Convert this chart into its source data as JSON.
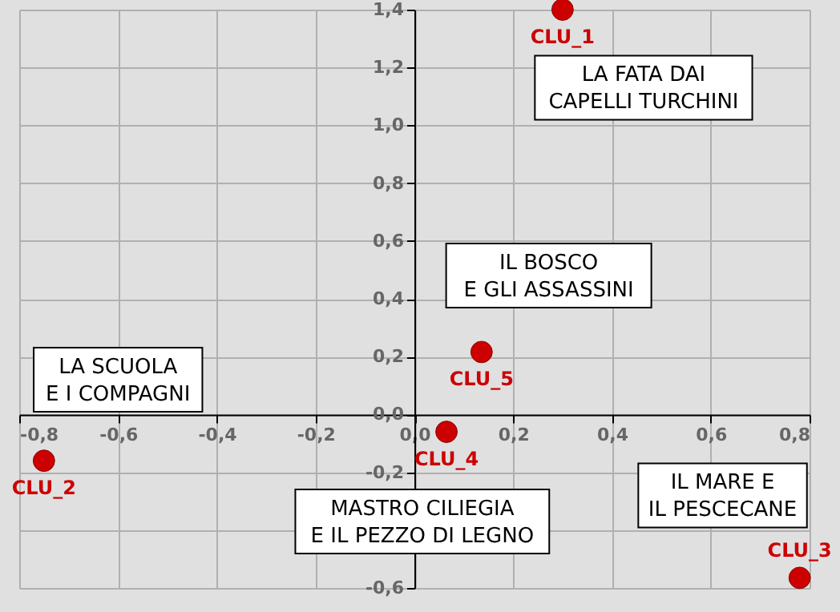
{
  "chart_data": {
    "type": "scatter",
    "x": [
      0.3,
      -0.75,
      0.78,
      0.065,
      0.136
    ],
    "series": [
      {
        "color": "#cc0000",
        "values": [
          1.4,
          -0.16,
          -0.565,
          -0.06,
          0.216
        ]
      }
    ],
    "marker": "circle",
    "xlim": [
      -0.8,
      0.8
    ],
    "ylim": [
      -0.6,
      1.4
    ],
    "xticks": [
      {
        "value": -0.8,
        "label": "-0,8"
      },
      {
        "value": -0.6,
        "label": "-0,6"
      },
      {
        "value": -0.4,
        "label": "-0,4"
      },
      {
        "value": -0.2,
        "label": "-0,2"
      },
      {
        "value": 0,
        "label": "0,0"
      },
      {
        "value": 0.2,
        "label": "0,2"
      },
      {
        "value": 0.4,
        "label": "0,4"
      },
      {
        "value": 0.6,
        "label": "0,6"
      },
      {
        "value": 0.8,
        "label": "0,8"
      }
    ],
    "yticks": [
      {
        "value": -0.6,
        "label": "-0,6"
      },
      {
        "value": -0.4,
        "label": null
      },
      {
        "value": -0.2,
        "label": "-0,2"
      },
      {
        "value": 0,
        "label": "0,0"
      },
      {
        "value": 0.2,
        "label": "0,2"
      },
      {
        "value": 0.4,
        "label": "0,4"
      },
      {
        "value": 0.6,
        "label": "0,6"
      },
      {
        "value": 0.8,
        "label": "0,8"
      },
      {
        "value": 1.0,
        "label": "1,0"
      },
      {
        "value": 1.2,
        "label": "1,2"
      },
      {
        "value": 1.4,
        "label": "1,4"
      }
    ],
    "grid": true,
    "annotations": [
      {
        "text": "CLU_1",
        "x": 0.3,
        "y": 1.4
      },
      {
        "text": "CLU_2",
        "x": -0.75,
        "y": -0.16
      },
      {
        "text": "CLU_3",
        "x": 0.78,
        "y": -0.565
      },
      {
        "text": "CLU_4",
        "x": 0.065,
        "y": -0.06
      },
      {
        "text": "CLU_5",
        "x": 0.136,
        "y": 0.216
      },
      "LA FATA DAI\nCAPELLI TURCHINI",
      "IL BOSCO\nE GLI ASSASSINI",
      "LA SCUOLA\nE I COMPAGNI",
      "MASTRO CILIEGIA\nE IL PEZZO DI LEGNO",
      "IL MARE E\nIL PESCECANE"
    ]
  }
}
